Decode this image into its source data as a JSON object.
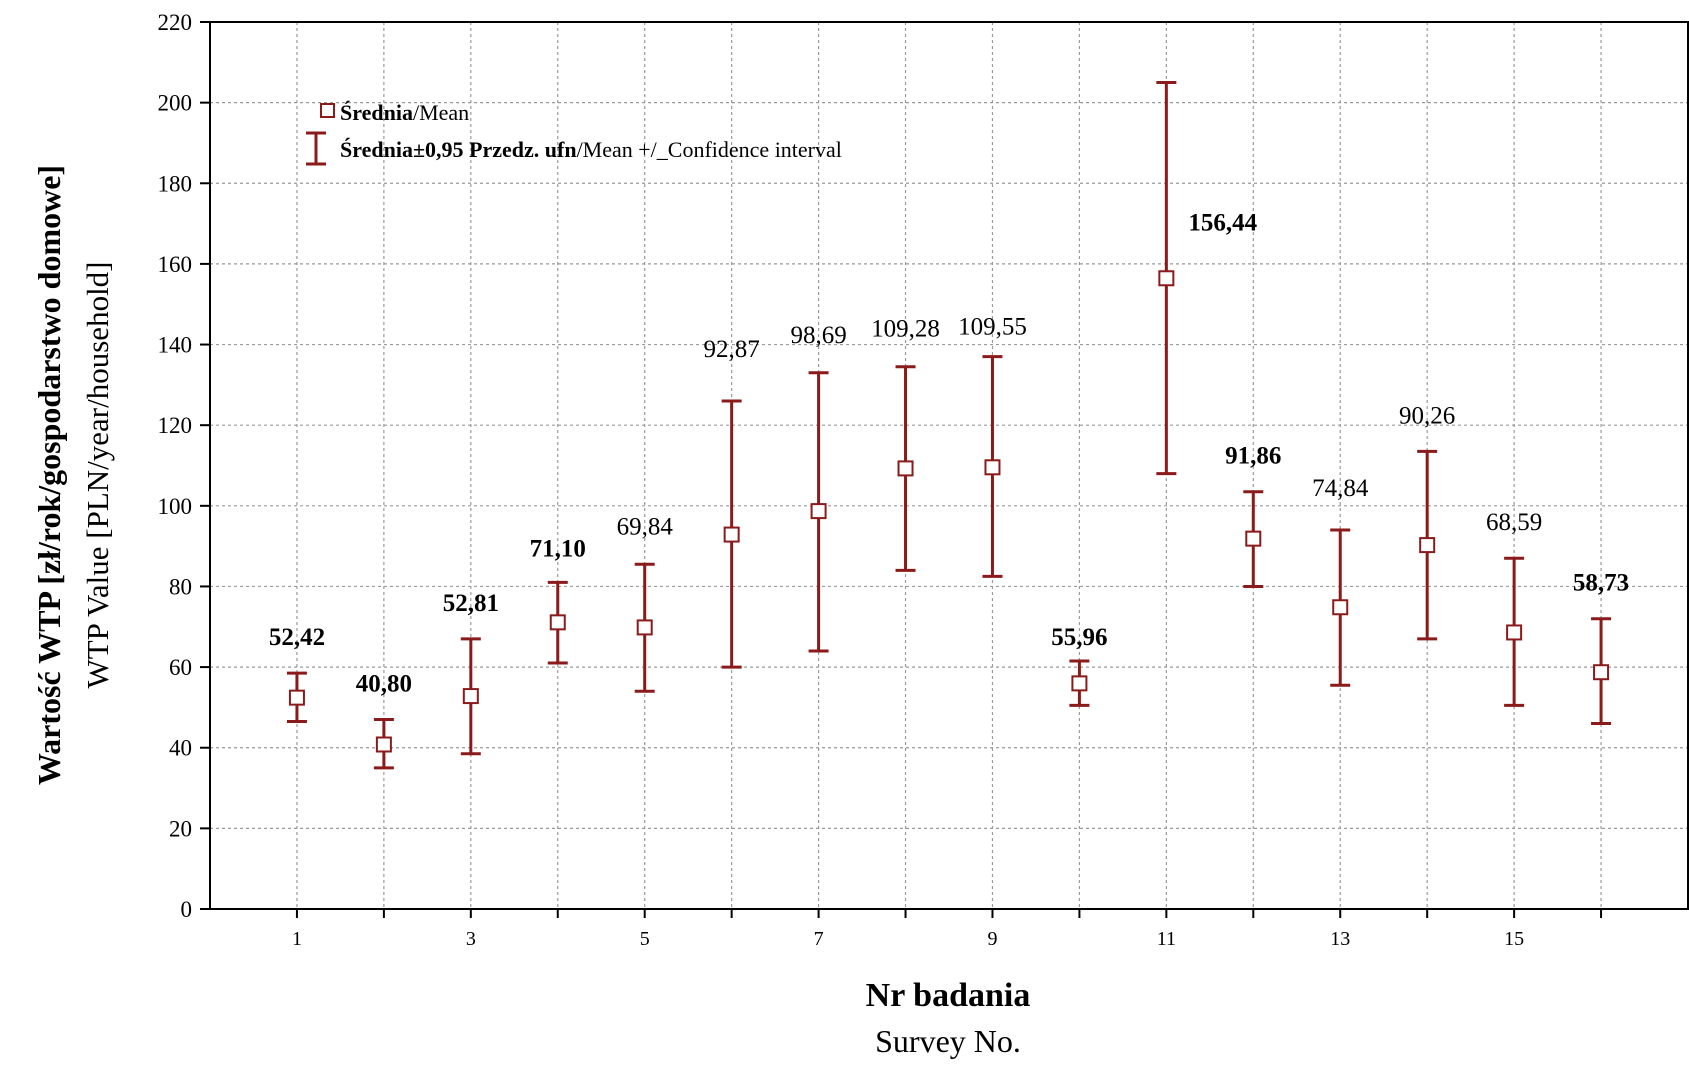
{
  "colors": {
    "series": "#8b1a1a",
    "axis": "#000000",
    "grid": "#9a9a9a",
    "background": "#ffffff"
  },
  "chart_data": {
    "type": "scatter",
    "title": "",
    "ylabel_pl": "Wartość WTP [zł/rok/gospodarstwo domowe]",
    "ylabel_en": "WTP Value [PLN/year/household]",
    "xlabel_pl": "Nr badania",
    "xlabel_en": "Survey No.",
    "xlim": [
      0,
      17
    ],
    "ylim": [
      0,
      220
    ],
    "x_ticks_labeled": [
      "1",
      "3",
      "5",
      "7",
      "9",
      "11",
      "13",
      "15"
    ],
    "y_ticks": [
      "0",
      "20",
      "40",
      "60",
      "80",
      "100",
      "120",
      "140",
      "160",
      "180",
      "200",
      "220"
    ],
    "grid": true,
    "legend_position": "top-left",
    "legend": {
      "mean_bold": "Średnia",
      "mean_rest": "/Mean",
      "ci_bold": "Średnia±0,95 Przedz. ufn",
      "ci_rest": "/Mean +/_Confidence interval"
    },
    "series": [
      {
        "x": [
          1,
          2,
          3,
          4,
          5,
          6,
          7,
          8,
          9,
          10,
          11,
          12,
          13,
          14,
          15,
          16
        ],
        "mean": [
          52.42,
          40.8,
          52.81,
          71.1,
          69.84,
          92.87,
          98.69,
          109.28,
          109.55,
          55.96,
          156.44,
          91.86,
          74.84,
          90.26,
          68.59,
          58.73
        ],
        "ci_low": [
          46.5,
          35,
          38.5,
          61,
          54,
          60,
          64,
          84,
          82.5,
          50.5,
          108,
          80,
          55.5,
          67,
          50.5,
          46
        ],
        "ci_high": [
          58.5,
          47,
          67,
          81,
          85.5,
          126,
          133,
          134.5,
          137,
          61.5,
          205,
          103.5,
          94,
          113.5,
          87,
          72
        ],
        "labels": [
          "52,42",
          "40,80",
          "52,81",
          "71,10",
          "69,84",
          "92,87",
          "98,69",
          "109,28",
          "109,55",
          "55,96",
          "156,44",
          "91,86",
          "74,84",
          "90,26",
          "68,59",
          "58,73"
        ],
        "label_bold": [
          true,
          true,
          true,
          true,
          false,
          false,
          false,
          false,
          false,
          true,
          true,
          true,
          false,
          false,
          false,
          true
        ]
      }
    ]
  }
}
